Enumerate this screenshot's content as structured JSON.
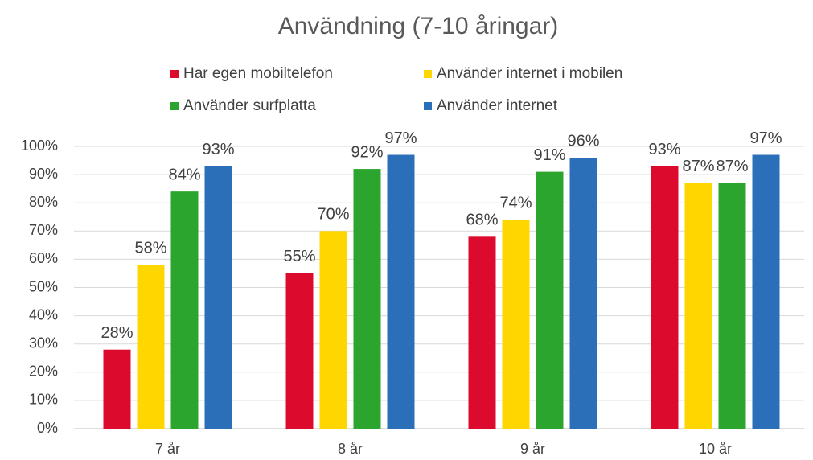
{
  "chart_data": {
    "type": "bar",
    "title": "Användning (7-10 åringar)",
    "categories": [
      "7 år",
      "8 år",
      "9 år",
      "10 år"
    ],
    "series": [
      {
        "name": "Har egen mobiltelefon",
        "color": "#dc0a2d",
        "values": [
          28,
          55,
          68,
          93
        ],
        "value_labels": [
          "28%",
          "55%",
          "68%",
          "93%"
        ]
      },
      {
        "name": "Använder internet i mobilen",
        "color": "#ffd600",
        "values": [
          58,
          70,
          74,
          87
        ],
        "value_labels": [
          "58%",
          "70%",
          "74%",
          "87%"
        ]
      },
      {
        "name": "Använder surfplatta",
        "color": "#2ca52e",
        "values": [
          84,
          92,
          91,
          87
        ],
        "value_labels": [
          "84%",
          "92%",
          "91%",
          "87%"
        ]
      },
      {
        "name": "Använder internet",
        "color": "#2a6fb8",
        "values": [
          93,
          97,
          96,
          97
        ],
        "value_labels": [
          "93%",
          "97%",
          "96%",
          "97%"
        ]
      }
    ],
    "ylim": [
      0,
      100
    ],
    "yticks": [
      {
        "value": 0,
        "label": "0%"
      },
      {
        "value": 10,
        "label": "10%"
      },
      {
        "value": 20,
        "label": "20%"
      },
      {
        "value": 30,
        "label": "30%"
      },
      {
        "value": 40,
        "label": "40%"
      },
      {
        "value": 50,
        "label": "50%"
      },
      {
        "value": 60,
        "label": "60%"
      },
      {
        "value": 70,
        "label": "70%"
      },
      {
        "value": 80,
        "label": "80%"
      },
      {
        "value": 90,
        "label": "90%"
      },
      {
        "value": 100,
        "label": "100%"
      }
    ],
    "grid": true
  }
}
